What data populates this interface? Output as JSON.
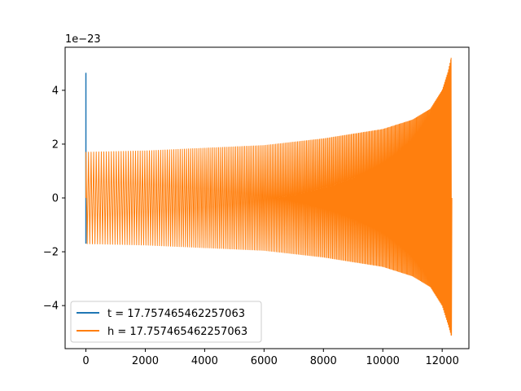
{
  "chart_data": {
    "type": "line",
    "title": "",
    "xlabel": "",
    "ylabel": "",
    "y_offset_text": "1e−23",
    "xlim": [
      -700,
      12900
    ],
    "ylim": [
      -5.6,
      5.6
    ],
    "xticks": [
      0,
      2000,
      4000,
      6000,
      8000,
      10000,
      12000
    ],
    "xtick_labels": [
      "0",
      "2000",
      "4000",
      "6000",
      "8000",
      "10000",
      "12000"
    ],
    "yticks": [
      -4,
      -2,
      0,
      2,
      4
    ],
    "ytick_labels": [
      "−4",
      "−2",
      "0",
      "2",
      "4"
    ],
    "grid": false,
    "legend_position": "lower-left",
    "series": [
      {
        "name": "t = 17.757465462257063",
        "color": "#1f77b4",
        "description_points": {
          "x": [
            0,
            0,
            0,
            0
          ],
          "y": [
            0,
            4.65,
            -1.7,
            0
          ]
        }
      },
      {
        "name": "h = 17.757465462257063",
        "color": "#ff7f0e",
        "x_start": 0,
        "x_end": 12300,
        "envelope_x": [
          0,
          2000,
          4000,
          6000,
          8000,
          10000,
          11000,
          11600,
          12000,
          12200,
          12300
        ],
        "envelope_y": [
          1.7,
          1.75,
          1.85,
          1.95,
          2.2,
          2.55,
          2.9,
          3.3,
          4.0,
          4.7,
          5.2
        ],
        "negative_envelope_y": [
          -1.7,
          -1.75,
          -1.85,
          -1.95,
          -2.2,
          -2.55,
          -2.9,
          -3.3,
          -4.0,
          -4.7,
          -5.1
        ]
      }
    ]
  }
}
